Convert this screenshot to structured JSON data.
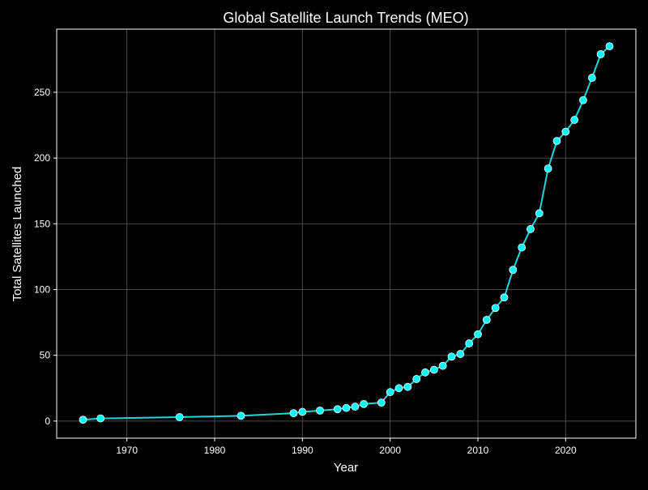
{
  "chart_data": {
    "type": "line",
    "title": "Global Satellite Launch Trends (MEO)",
    "xlabel": "Year",
    "ylabel": "Total Satellites Launched",
    "xlim": [
      1962,
      2028
    ],
    "ylim": [
      -13,
      298
    ],
    "xticks": [
      1970,
      1980,
      1990,
      2000,
      2010,
      2020
    ],
    "yticks": [
      0,
      50,
      100,
      150,
      200,
      250
    ],
    "grid": true,
    "colors": {
      "background": "#000000",
      "line": "#1fd6d6",
      "marker_fill": "#00ffff",
      "marker_edge": "#ffffff",
      "grid": "#4a4a4a",
      "axes": "#ffffff"
    },
    "series": [
      {
        "x": [
          1965,
          1967,
          1976,
          1983,
          1989,
          1990,
          1992,
          1994,
          1995,
          1996,
          1997,
          1999,
          2000,
          2001,
          2002,
          2003,
          2004,
          2005,
          2006,
          2007,
          2008,
          2009,
          2010,
          2011,
          2012,
          2013,
          2014,
          2015,
          2016,
          2017,
          2018,
          2019,
          2020,
          2021,
          2022,
          2023,
          2024,
          2025
        ],
        "y": [
          1,
          2,
          3,
          4,
          6,
          7,
          8,
          9,
          10,
          11,
          13,
          14,
          22,
          25,
          26,
          32,
          37,
          39,
          42,
          49,
          51,
          59,
          66,
          77,
          86,
          94,
          115,
          132,
          146,
          158,
          192,
          213,
          220,
          229,
          244,
          261,
          279,
          285
        ]
      }
    ]
  }
}
